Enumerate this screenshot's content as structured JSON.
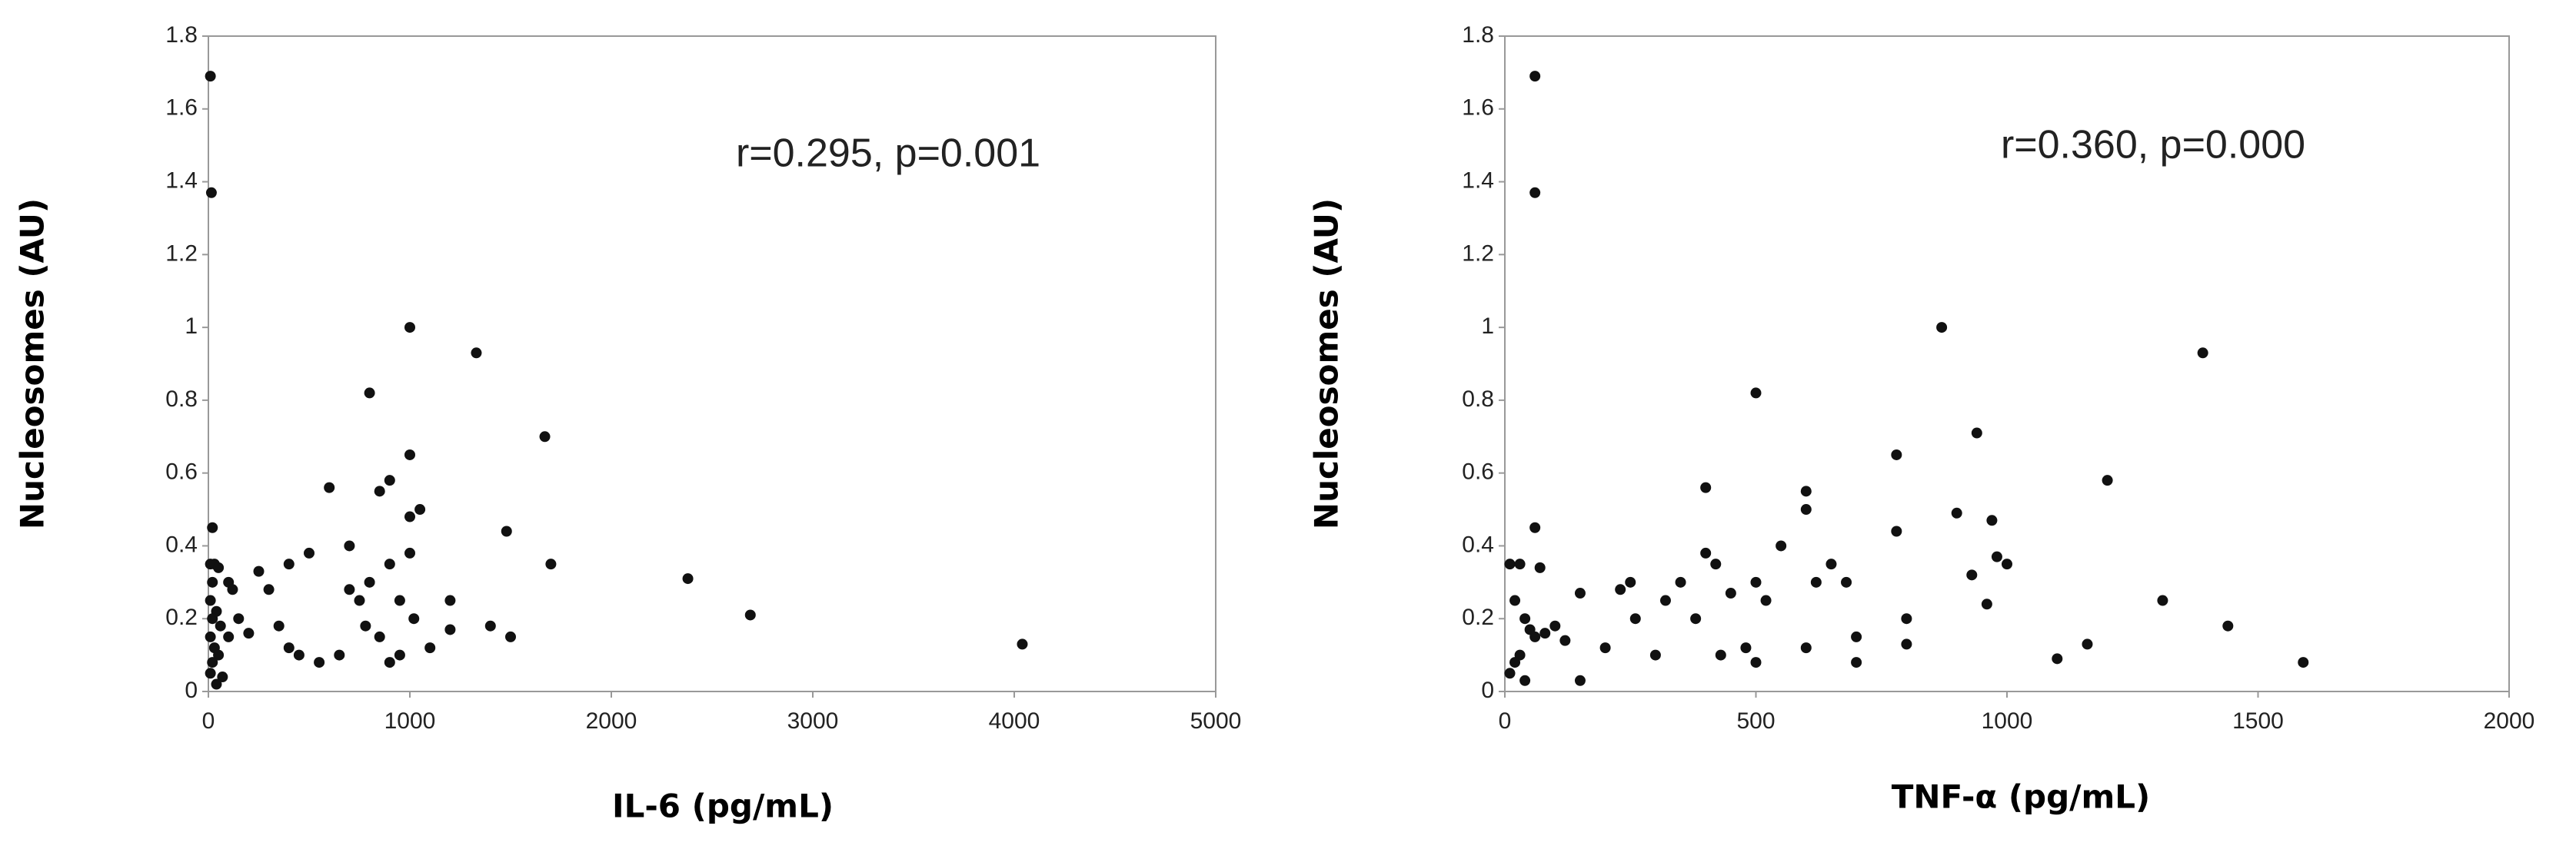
{
  "chart_data": [
    {
      "type": "scatter",
      "annotation": "r=0.295, p=0.001",
      "x_label": "IL-6 (pg/mL)",
      "y_label": "Nucleosomes (AU)",
      "color": "#111111",
      "xlim": [
        0,
        5000
      ],
      "xticks": [
        0,
        1000,
        2000,
        3000,
        4000,
        5000
      ],
      "ylim": [
        0,
        1.8
      ],
      "yticks": [
        0,
        0.2,
        0.4,
        0.6,
        0.8,
        1,
        1.2,
        1.4,
        1.6,
        1.8
      ],
      "x": [
        10,
        15,
        20,
        10,
        30,
        50,
        20,
        10,
        40,
        20,
        60,
        10,
        30,
        50,
        20,
        10,
        70,
        40,
        100,
        120,
        100,
        150,
        200,
        250,
        300,
        350,
        400,
        400,
        450,
        500,
        550,
        600,
        650,
        700,
        750,
        800,
        800,
        850,
        850,
        900,
        900,
        950,
        950,
        1000,
        1000,
        1000,
        1000,
        1020,
        1050,
        1100,
        1200,
        1200,
        1330,
        1400,
        1480,
        1500,
        1670,
        1700,
        2380,
        2690,
        4040,
        780,
        700,
        900
      ],
      "y": [
        1.69,
        1.37,
        0.45,
        0.35,
        0.35,
        0.34,
        0.3,
        0.25,
        0.22,
        0.2,
        0.18,
        0.15,
        0.12,
        0.1,
        0.08,
        0.05,
        0.04,
        0.02,
        0.3,
        0.28,
        0.15,
        0.2,
        0.16,
        0.33,
        0.28,
        0.18,
        0.35,
        0.12,
        0.1,
        0.38,
        0.08,
        0.56,
        0.1,
        0.4,
        0.25,
        0.82,
        0.3,
        0.55,
        0.15,
        0.58,
        0.35,
        0.25,
        0.1,
        1.0,
        0.65,
        0.48,
        0.38,
        0.2,
        0.5,
        0.12,
        0.25,
        0.17,
        0.93,
        0.18,
        0.44,
        0.15,
        0.7,
        0.35,
        0.31,
        0.21,
        0.13,
        0.18,
        0.28,
        0.08
      ]
    },
    {
      "type": "scatter",
      "annotation": "r=0.360, p=0.000",
      "x_label": "TNF-α (pg/mL)",
      "y_label": "Nucleosomes (AU)",
      "color": "#111111",
      "xlim": [
        0,
        2000
      ],
      "xticks": [
        0,
        500,
        1000,
        1500,
        2000
      ],
      "ylim": [
        0,
        1.8
      ],
      "yticks": [
        0,
        0.2,
        0.4,
        0.6,
        0.8,
        1,
        1.2,
        1.4,
        1.6,
        1.8
      ],
      "x": [
        60,
        60,
        60,
        10,
        30,
        70,
        20,
        40,
        50,
        60,
        80,
        30,
        10,
        40,
        20,
        100,
        120,
        150,
        150,
        200,
        230,
        250,
        260,
        300,
        320,
        350,
        380,
        400,
        400,
        420,
        430,
        450,
        480,
        500,
        500,
        500,
        520,
        550,
        600,
        600,
        600,
        620,
        650,
        680,
        700,
        700,
        780,
        780,
        800,
        800,
        870,
        900,
        930,
        940,
        960,
        970,
        980,
        1000,
        1100,
        1160,
        1200,
        1310,
        1390,
        1440,
        1590
      ],
      "y": [
        1.69,
        1.37,
        0.45,
        0.35,
        0.35,
        0.34,
        0.25,
        0.2,
        0.17,
        0.15,
        0.16,
        0.1,
        0.05,
        0.03,
        0.08,
        0.18,
        0.14,
        0.27,
        0.03,
        0.12,
        0.28,
        0.3,
        0.2,
        0.1,
        0.25,
        0.3,
        0.2,
        0.56,
        0.38,
        0.35,
        0.1,
        0.27,
        0.12,
        0.82,
        0.3,
        0.08,
        0.25,
        0.4,
        0.55,
        0.5,
        0.12,
        0.3,
        0.35,
        0.3,
        0.15,
        0.08,
        0.65,
        0.44,
        0.2,
        0.13,
        1.0,
        0.49,
        0.32,
        0.71,
        0.24,
        0.47,
        0.37,
        0.35,
        0.09,
        0.13,
        0.58,
        0.25,
        0.93,
        0.18,
        0.08
      ]
    }
  ]
}
